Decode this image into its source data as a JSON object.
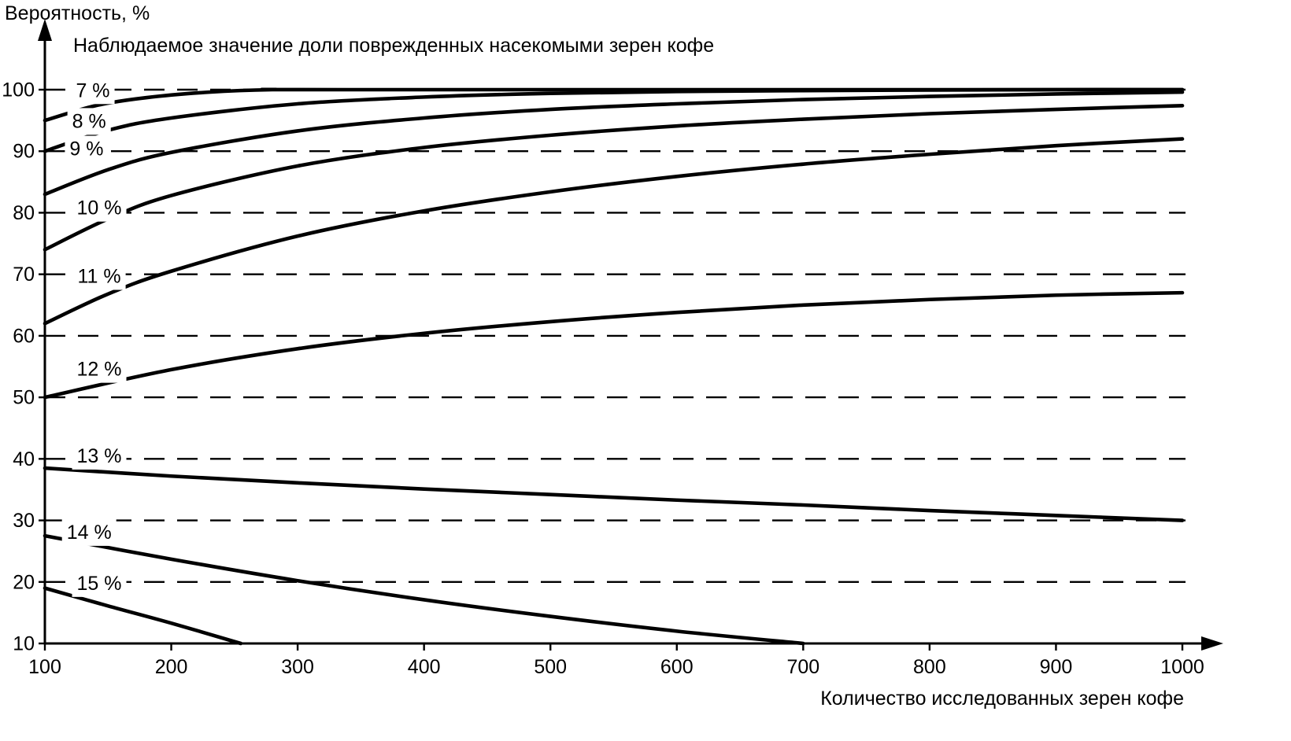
{
  "chart_data": {
    "type": "line",
    "title": "Наблюдаемое значение доли поврежденных насекомыми зерен кофе",
    "ylabel": "Вероятность, %",
    "xlabel": "Количество исследованных зерен кофе",
    "xlim": [
      100,
      1000
    ],
    "ylim": [
      10,
      100
    ],
    "xticks": [
      100,
      200,
      300,
      400,
      500,
      600,
      700,
      800,
      900,
      1000
    ],
    "yticks": [
      10,
      20,
      30,
      40,
      50,
      60,
      70,
      80,
      90,
      100
    ],
    "grid": "horizontal-long-dash",
    "legend": "inline-curve-labels",
    "line_color": "#000000",
    "series": [
      {
        "name": "7 %",
        "label_at": [
          138,
          99.9
        ],
        "x": [
          100,
          140,
          180,
          230,
          280,
          340,
          1000
        ],
        "values": [
          95,
          97.4,
          98.7,
          99.6,
          100,
          100,
          100
        ]
      },
      {
        "name": "8 %",
        "label_at": [
          135,
          94.9
        ],
        "x": [
          100,
          150,
          200,
          300,
          400,
          500,
          600,
          700,
          800,
          900,
          1000
        ],
        "values": [
          90,
          93.4,
          95.4,
          97.7,
          98.8,
          99.4,
          99.7,
          99.85,
          99.95,
          100,
          100
        ]
      },
      {
        "name": "9 %",
        "label_at": [
          133,
          90.4
        ],
        "x": [
          100,
          150,
          200,
          300,
          400,
          500,
          600,
          700,
          800,
          900,
          1000
        ],
        "values": [
          83,
          87,
          89.8,
          93.3,
          95.4,
          96.8,
          97.7,
          98.4,
          98.9,
          99.3,
          99.6
        ]
      },
      {
        "name": "10 %",
        "label_at": [
          143,
          80.8
        ],
        "x": [
          100,
          150,
          200,
          300,
          400,
          500,
          600,
          700,
          800,
          900,
          1000
        ],
        "values": [
          74,
          79,
          82.8,
          87.6,
          90.6,
          92.6,
          94.1,
          95.2,
          96.1,
          96.8,
          97.4
        ]
      },
      {
        "name": "11 %",
        "label_at": [
          143,
          69.7
        ],
        "x": [
          100,
          150,
          200,
          300,
          400,
          500,
          600,
          700,
          800,
          900,
          1000
        ],
        "values": [
          62,
          66.8,
          70.5,
          76.2,
          80.3,
          83.4,
          85.9,
          87.9,
          89.5,
          90.9,
          92
        ]
      },
      {
        "name": "12 %",
        "label_at": [
          143,
          54.6
        ],
        "x": [
          100,
          200,
          300,
          400,
          500,
          600,
          700,
          800,
          900,
          1000
        ],
        "values": [
          50,
          54.5,
          57.9,
          60.4,
          62.3,
          63.8,
          65,
          65.9,
          66.6,
          67
        ]
      },
      {
        "name": "13 %",
        "label_at": [
          143,
          40.5
        ],
        "x": [
          100,
          200,
          300,
          400,
          500,
          600,
          700,
          800,
          900,
          1000
        ],
        "values": [
          38.5,
          37.2,
          36.1,
          35.1,
          34.2,
          33.3,
          32.5,
          31.6,
          30.8,
          30
        ]
      },
      {
        "name": "14 %",
        "label_at": [
          135,
          28.1
        ],
        "x": [
          100,
          200,
          300,
          400,
          500,
          600,
          700
        ],
        "values": [
          27.5,
          23.7,
          20.2,
          17.1,
          14.4,
          12,
          10
        ]
      },
      {
        "name": "15 %",
        "label_at": [
          143,
          19.8
        ],
        "x": [
          100,
          150,
          200,
          255
        ],
        "values": [
          19,
          16.1,
          13.3,
          10
        ]
      }
    ]
  }
}
